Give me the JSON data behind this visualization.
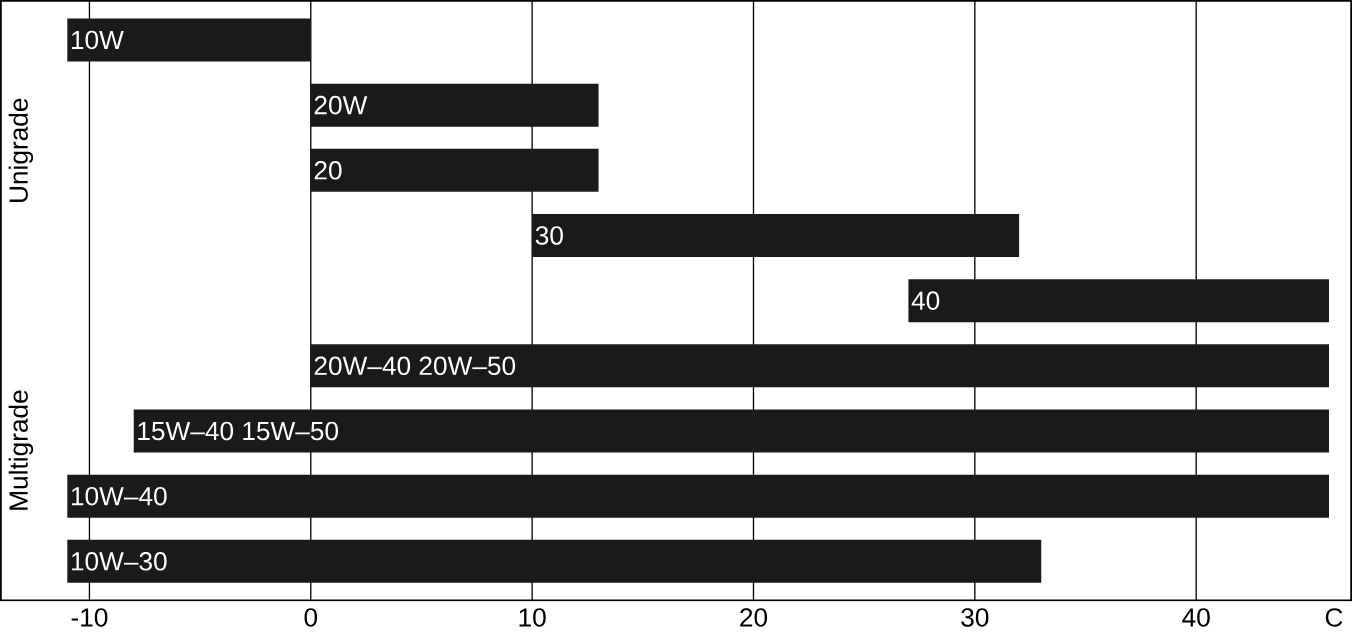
{
  "chart_data": {
    "type": "bar",
    "orientation": "horizontal",
    "categories": [
      "10W",
      "20W",
      "20",
      "30",
      "40",
      "20W–40   20W–50",
      "15W–40   15W–50",
      "10W–40",
      "10W–30"
    ],
    "base": [
      -11,
      0,
      0,
      10,
      27,
      0,
      -8,
      -11,
      -11
    ],
    "values": [
      11,
      13,
      13,
      22,
      19,
      46,
      54,
      57,
      44
    ],
    "color": "#1a1a1a",
    "xlim": [
      -14,
      47
    ],
    "xticks": [
      -10,
      0,
      10,
      20,
      30,
      40
    ],
    "xlabel": "C",
    "grid": "x",
    "annotations": [
      "Unigrade",
      "Multigrade"
    ]
  }
}
